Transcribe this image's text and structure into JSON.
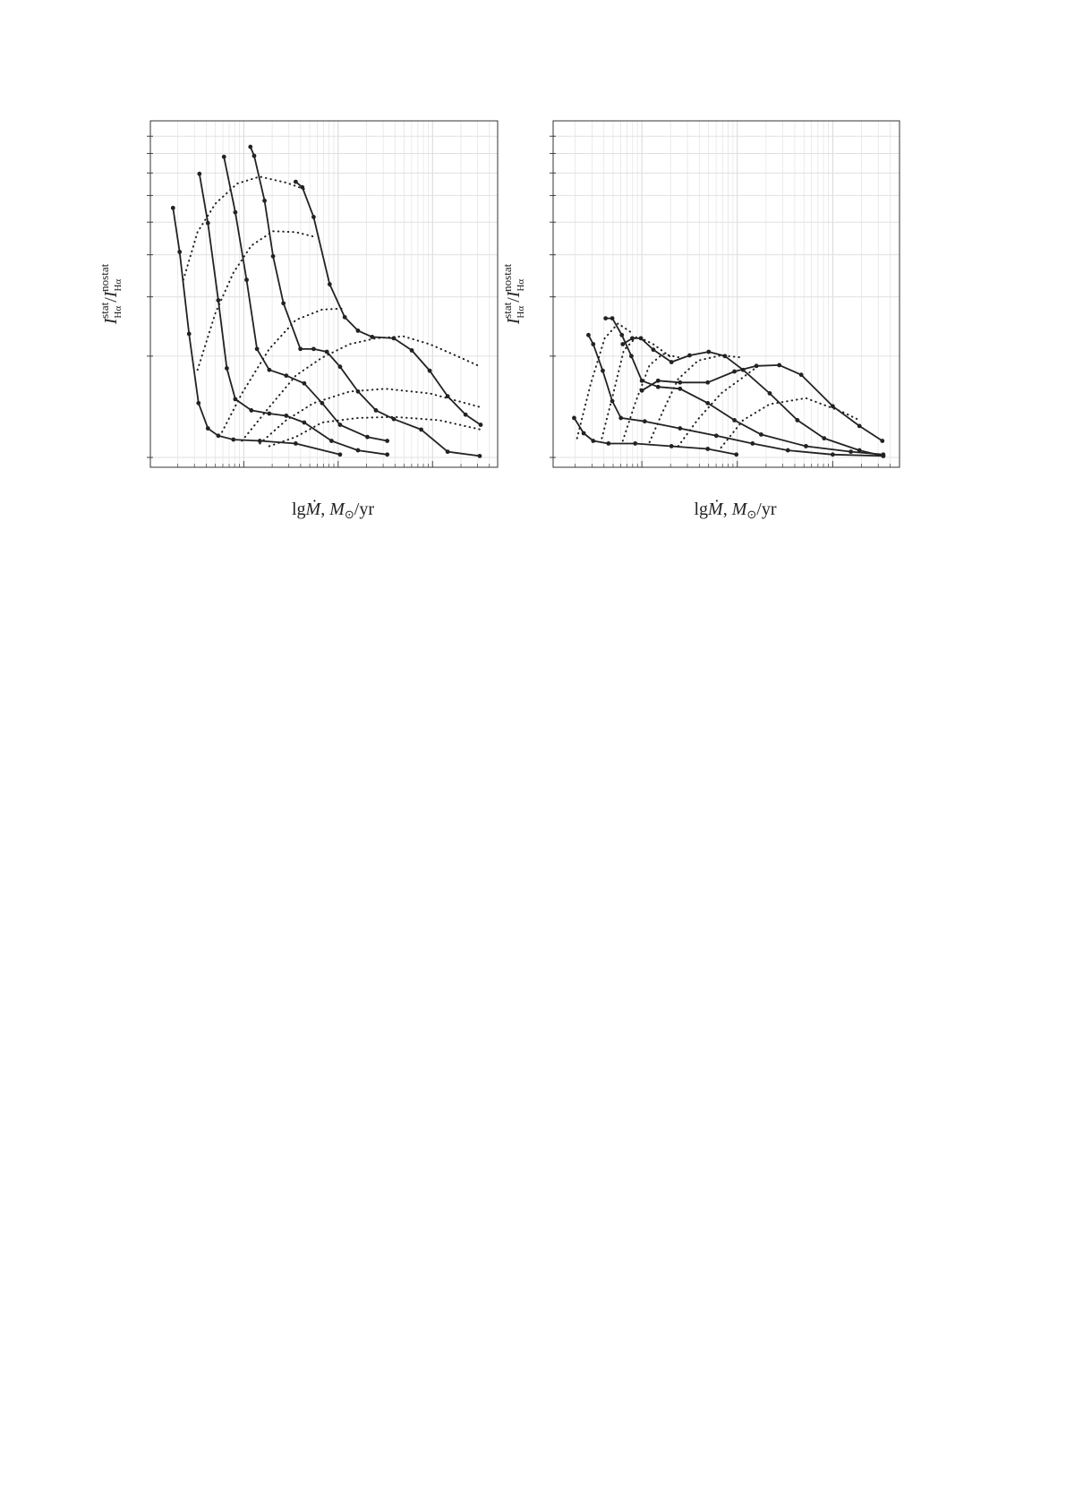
{
  "chart_data": [
    {
      "type": "line",
      "x_label": {
        "prefix": "lg",
        "symbol": "Ṁ",
        "sep": ", ",
        "unit_symbol": "M",
        "unit_sub": "⊙",
        "unit_rest": "/yr"
      },
      "y_label": {
        "symbol": "I",
        "sub": "Hα",
        "sup_num": "stat",
        "sup_den": "nostat"
      },
      "xlim": [
        -0.99,
        2.69
      ],
      "xticks": [
        0,
        1,
        2
      ],
      "x_minor_grid": true,
      "ylim": [
        0.935,
        10.0
      ],
      "yticks": [
        1,
        2,
        3,
        4,
        5,
        6,
        7,
        8,
        9
      ],
      "y_log": true,
      "grid": true,
      "tick_labels": false,
      "series": [
        {
          "style": "solid",
          "markers": true,
          "color": "#222222",
          "x": [
            -0.75,
            -0.68,
            -0.58,
            -0.48,
            -0.38,
            -0.27,
            -0.11,
            0.17,
            0.55,
            1.02
          ],
          "values": [
            5.51,
            4.08,
            2.33,
            1.45,
            1.22,
            1.16,
            1.13,
            1.12,
            1.1,
            1.02
          ]
        },
        {
          "style": "solid",
          "markers": true,
          "color": "#222222",
          "x": [
            -0.47,
            -0.38,
            -0.27,
            -0.18,
            -0.09,
            0.08,
            0.27,
            0.45,
            0.64,
            0.93,
            1.21,
            1.52
          ],
          "values": [
            6.96,
            4.97,
            2.93,
            1.84,
            1.49,
            1.38,
            1.35,
            1.33,
            1.27,
            1.12,
            1.05,
            1.02
          ]
        },
        {
          "style": "solid",
          "markers": true,
          "color": "#222222",
          "x": [
            -0.21,
            -0.09,
            0.03,
            0.14,
            0.27,
            0.45,
            0.64,
            0.83,
            1.02,
            1.31,
            1.52
          ],
          "values": [
            7.82,
            5.35,
            3.37,
            2.1,
            1.82,
            1.75,
            1.66,
            1.45,
            1.25,
            1.15,
            1.12
          ]
        },
        {
          "style": "solid",
          "markers": true,
          "color": "#222222",
          "x": [
            0.07,
            0.11,
            0.22,
            0.31,
            0.42,
            0.6,
            0.74,
            0.88,
            1.02,
            1.21,
            1.4,
            1.59,
            1.88,
            2.16,
            2.5
          ],
          "values": [
            8.37,
            7.87,
            5.79,
            3.96,
            2.87,
            2.1,
            2.1,
            2.06,
            1.86,
            1.57,
            1.38,
            1.3,
            1.21,
            1.04,
            1.01
          ]
        },
        {
          "style": "solid",
          "markers": true,
          "color": "#222222",
          "x": [
            0.55,
            0.62,
            0.74,
            0.91,
            1.07,
            1.21,
            1.36,
            1.59,
            1.78,
            1.97,
            2.16,
            2.35,
            2.51
          ],
          "values": [
            6.59,
            6.35,
            5.18,
            3.27,
            2.61,
            2.38,
            2.28,
            2.26,
            2.08,
            1.81,
            1.52,
            1.34,
            1.25
          ]
        },
        {
          "style": "dotted",
          "markers": false,
          "color": "#222222",
          "x": [
            -0.64,
            -0.49,
            -0.3,
            -0.07,
            0.17,
            0.45,
            0.64
          ],
          "values": [
            3.37,
            4.67,
            5.68,
            6.51,
            6.83,
            6.55,
            6.27
          ]
        },
        {
          "style": "dotted",
          "markers": false,
          "color": "#222222",
          "x": [
            -0.49,
            -0.3,
            -0.11,
            0.08,
            0.31,
            0.55,
            0.74
          ],
          "values": [
            1.82,
            2.69,
            3.54,
            4.26,
            4.7,
            4.67,
            4.53
          ]
        },
        {
          "style": "dotted",
          "markers": false,
          "color": "#222222",
          "x": [
            -0.23,
            -0.02,
            0.27,
            0.55,
            0.83,
            1.07
          ],
          "values": [
            1.19,
            1.55,
            2.1,
            2.56,
            2.75,
            2.77
          ]
        },
        {
          "style": "dotted",
          "markers": false,
          "color": "#222222",
          "x": [
            -0.02,
            0.27,
            0.55,
            0.83,
            1.12,
            1.4,
            1.69,
            1.97,
            2.26,
            2.51
          ],
          "values": [
            1.12,
            1.41,
            1.75,
            1.98,
            2.17,
            2.26,
            2.29,
            2.17,
            2.0,
            1.86
          ]
        },
        {
          "style": "dotted",
          "markers": false,
          "color": "#222222",
          "x": [
            0.17,
            0.45,
            0.74,
            1.12,
            1.5,
            1.97,
            2.51
          ],
          "values": [
            1.1,
            1.29,
            1.45,
            1.57,
            1.6,
            1.55,
            1.41
          ]
        },
        {
          "style": "dotted",
          "markers": false,
          "color": "#222222",
          "x": [
            0.27,
            0.55,
            0.83,
            1.21,
            1.59,
            2.07,
            2.51
          ],
          "values": [
            1.08,
            1.15,
            1.27,
            1.31,
            1.32,
            1.29,
            1.21
          ]
        }
      ]
    },
    {
      "type": "line",
      "x_label": {
        "prefix": "lg",
        "symbol": "Ṁ",
        "sep": ", ",
        "unit_symbol": "M",
        "unit_sub": "⊙",
        "unit_rest": "/yr"
      },
      "y_label": {
        "symbol": "I",
        "sub": "Hα",
        "sup_num": "stat",
        "sup_den": "nostat"
      },
      "xlim": [
        -0.93,
        2.7
      ],
      "xticks": [
        0,
        1,
        2
      ],
      "x_minor_grid": true,
      "ylim": [
        0.935,
        10.0
      ],
      "yticks": [
        1,
        2,
        3,
        4,
        5,
        6,
        7,
        8,
        9
      ],
      "y_log": true,
      "grid": true,
      "tick_labels": false,
      "series": [
        {
          "style": "solid",
          "markers": true,
          "color": "#222222",
          "x": [
            -0.71,
            -0.61,
            -0.51,
            -0.35,
            -0.07,
            0.31,
            0.69,
            0.99
          ],
          "values": [
            1.31,
            1.18,
            1.12,
            1.1,
            1.1,
            1.08,
            1.06,
            1.02
          ]
        },
        {
          "style": "solid",
          "markers": true,
          "color": "#222222",
          "x": [
            -0.56,
            -0.51,
            -0.41,
            -0.31,
            -0.22,
            0.03,
            0.4,
            0.78,
            1.16,
            1.53,
            2.0,
            2.53
          ],
          "values": [
            2.31,
            2.17,
            1.81,
            1.47,
            1.31,
            1.28,
            1.22,
            1.16,
            1.1,
            1.05,
            1.02,
            1.01
          ]
        },
        {
          "style": "solid",
          "markers": true,
          "color": "#222222",
          "x": [
            -0.38,
            -0.31,
            -0.21,
            -0.11,
            0,
            0.17,
            0.4,
            0.69,
            0.97,
            1.25,
            1.72,
            2.19,
            2.53
          ],
          "values": [
            2.59,
            2.59,
            2.31,
            2.0,
            1.69,
            1.62,
            1.6,
            1.45,
            1.29,
            1.17,
            1.08,
            1.04,
            1.02
          ]
        },
        {
          "style": "solid",
          "markers": true,
          "color": "#222222",
          "x": [
            -0.2,
            -0.1,
            -0.01,
            0.12,
            0.31,
            0.5,
            0.7,
            0.87,
            1.06,
            1.34,
            1.63,
            1.91,
            2.28,
            2.53
          ],
          "values": [
            2.17,
            2.26,
            2.26,
            2.09,
            1.92,
            2.01,
            2.06,
            2.0,
            1.82,
            1.55,
            1.29,
            1.14,
            1.05,
            1.01
          ]
        },
        {
          "style": "solid",
          "markers": true,
          "color": "#222222",
          "x": [
            0,
            0.17,
            0.4,
            0.69,
            0.97,
            1.2,
            1.44,
            1.67,
            2.0,
            2.28,
            2.52
          ],
          "values": [
            1.58,
            1.69,
            1.67,
            1.67,
            1.8,
            1.87,
            1.88,
            1.76,
            1.42,
            1.24,
            1.12
          ]
        },
        {
          "style": "dotted",
          "markers": false,
          "color": "#222222",
          "x": [
            -0.68,
            -0.54,
            -0.39,
            -0.25,
            -0.11
          ],
          "values": [
            1.14,
            1.64,
            2.26,
            2.5,
            2.35
          ]
        },
        {
          "style": "dotted",
          "markers": false,
          "color": "#222222",
          "x": [
            -0.42,
            -0.3,
            -0.19,
            -0.05,
            0.12,
            0.31
          ],
          "values": [
            1.14,
            1.55,
            2.08,
            2.29,
            2.17,
            1.98
          ]
        },
        {
          "style": "dotted",
          "markers": false,
          "color": "#222222",
          "x": [
            -0.2,
            -0.07,
            0.08,
            0.22,
            0.4
          ],
          "values": [
            1.12,
            1.45,
            1.88,
            2.03,
            1.98
          ]
        },
        {
          "style": "dotted",
          "markers": false,
          "color": "#222222",
          "x": [
            0.08,
            0.22,
            0.38,
            0.59,
            0.83,
            1.06
          ],
          "values": [
            1.11,
            1.37,
            1.71,
            1.94,
            2.01,
            1.98
          ]
        },
        {
          "style": "dotted",
          "markers": false,
          "color": "#222222",
          "x": [
            0.38,
            0.59,
            0.83,
            1.06,
            1.23
          ],
          "values": [
            1.08,
            1.3,
            1.55,
            1.73,
            1.88
          ]
        },
        {
          "style": "dotted",
          "markers": false,
          "color": "#222222",
          "x": [
            0.83,
            1.06,
            1.34,
            1.72,
            2.09,
            2.28
          ],
          "values": [
            1.07,
            1.29,
            1.44,
            1.5,
            1.37,
            1.29
          ]
        }
      ]
    }
  ]
}
